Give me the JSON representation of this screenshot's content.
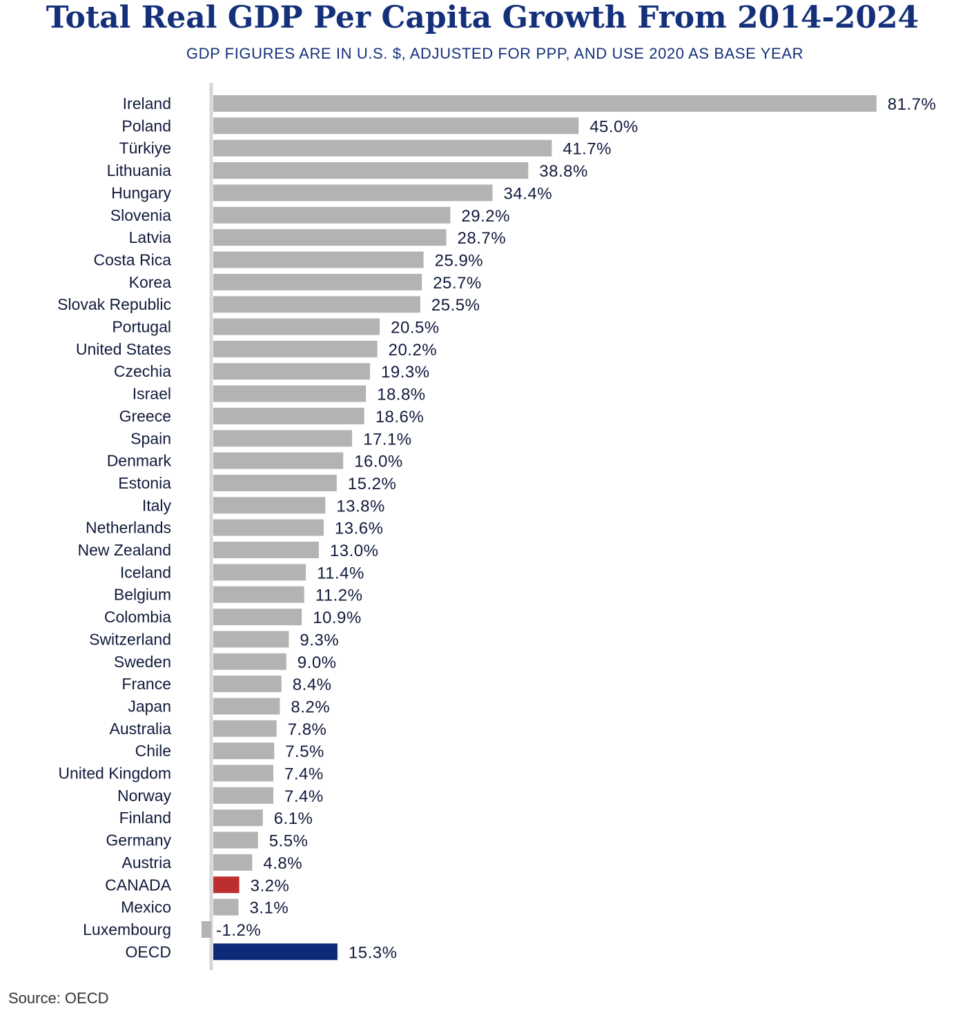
{
  "chart_data": {
    "type": "bar",
    "orientation": "horizontal",
    "title": "Total Real GDP Per Capita Growth From 2014-2024",
    "subtitle": "GDP FIGURES ARE IN U.S. $, ADJUSTED FOR PPP, AND USE 2020 AS BASE YEAR",
    "xlabel": "",
    "ylabel": "",
    "value_suffix": "%",
    "xlim": [
      -1.2,
      81.7
    ],
    "grid": false,
    "categories": [
      "Ireland",
      "Poland",
      "Türkiye",
      "Lithuania",
      "Hungary",
      "Slovenia",
      "Latvia",
      "Costa Rica",
      "Korea",
      "Slovak Republic",
      "Portugal",
      "United States",
      "Czechia",
      "Israel",
      "Greece",
      "Spain",
      "Denmark",
      "Estonia",
      "Italy",
      "Netherlands",
      "New Zealand",
      "Iceland",
      "Belgium",
      "Colombia",
      "Switzerland",
      "Sweden",
      "France",
      "Japan",
      "Australia",
      "Chile",
      "United Kingdom",
      "Norway",
      "Finland",
      "Germany",
      "Austria",
      "CANADA",
      "Mexico",
      "Luxembourg",
      "OECD"
    ],
    "values": [
      81.7,
      45.0,
      41.7,
      38.8,
      34.4,
      29.2,
      28.7,
      25.9,
      25.7,
      25.5,
      20.5,
      20.2,
      19.3,
      18.8,
      18.6,
      17.1,
      16.0,
      15.2,
      13.8,
      13.6,
      13.0,
      11.4,
      11.2,
      10.9,
      9.3,
      9.0,
      8.4,
      8.2,
      7.8,
      7.5,
      7.4,
      7.4,
      6.1,
      5.5,
      4.8,
      3.2,
      3.1,
      -1.2,
      15.3
    ],
    "highlights": {
      "CANADA": "#bd2e2e",
      "OECD": "#0d2a78"
    }
  },
  "colors": {
    "default_bar": "#b3b3b3",
    "axis_line": "#d6d6d6",
    "label_text": "#111a3c",
    "title": "#14307a"
  },
  "source": "Source: OECD"
}
